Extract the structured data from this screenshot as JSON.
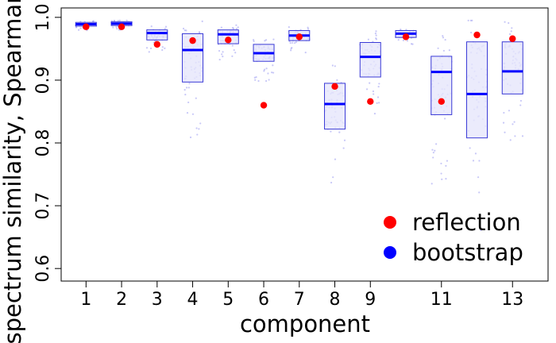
{
  "chart_data": {
    "type": "box",
    "xlabel": "component",
    "ylabel": "spectrum similarity, Spearman",
    "ylim": [
      0.58,
      1.015
    ],
    "xlim": [
      0.3,
      14.0
    ],
    "x_ticks": [
      {
        "pos": 1,
        "label": "1"
      },
      {
        "pos": 2,
        "label": "2"
      },
      {
        "pos": 3,
        "label": "3"
      },
      {
        "pos": 4,
        "label": "4"
      },
      {
        "pos": 5,
        "label": "5"
      },
      {
        "pos": 6,
        "label": "6"
      },
      {
        "pos": 7,
        "label": "7"
      },
      {
        "pos": 8,
        "label": "8"
      },
      {
        "pos": 9,
        "label": "9"
      },
      {
        "pos": 11,
        "label": "11"
      },
      {
        "pos": 13,
        "label": "13"
      }
    ],
    "y_ticks": [
      {
        "pos": 0.6,
        "label": "0.6"
      },
      {
        "pos": 0.7,
        "label": "0.7"
      },
      {
        "pos": 0.8,
        "label": "0.8"
      },
      {
        "pos": 0.9,
        "label": "0.9"
      },
      {
        "pos": 1.0,
        "label": "1.0"
      }
    ],
    "boxes": [
      {
        "component": 1,
        "q1": 0.986,
        "median": 0.989,
        "q3": 0.992,
        "reflection": 0.985
      },
      {
        "component": 2,
        "q1": 0.987,
        "median": 0.99,
        "q3": 0.993,
        "reflection": 0.985
      },
      {
        "component": 3,
        "q1": 0.964,
        "median": 0.975,
        "q3": 0.98,
        "reflection": 0.957
      },
      {
        "component": 4,
        "q1": 0.897,
        "median": 0.948,
        "q3": 0.974,
        "reflection": 0.963
      },
      {
        "component": 5,
        "q1": 0.958,
        "median": 0.973,
        "q3": 0.98,
        "reflection": 0.964
      },
      {
        "component": 6,
        "q1": 0.93,
        "median": 0.943,
        "q3": 0.957,
        "reflection": 0.86
      },
      {
        "component": 7,
        "q1": 0.963,
        "median": 0.971,
        "q3": 0.979,
        "reflection": 0.969
      },
      {
        "component": 8,
        "q1": 0.822,
        "median": 0.862,
        "q3": 0.895,
        "reflection": 0.89
      },
      {
        "component": 9,
        "q1": 0.905,
        "median": 0.937,
        "q3": 0.96,
        "reflection": 0.866
      },
      {
        "component": 10,
        "q1": 0.968,
        "median": 0.974,
        "q3": 0.979,
        "reflection": 0.969
      },
      {
        "component": 11,
        "q1": 0.845,
        "median": 0.913,
        "q3": 0.938,
        "reflection": 0.866
      },
      {
        "component": 12,
        "q1": 0.808,
        "median": 0.878,
        "q3": 0.961,
        "reflection": 0.972
      },
      {
        "component": 13,
        "q1": 0.878,
        "median": 0.914,
        "q3": 0.961,
        "reflection": 0.966
      }
    ],
    "legend": {
      "placement": "bottom-right",
      "items": [
        {
          "label": "reflection",
          "color": "#ff0000"
        },
        {
          "label": "bootstrap",
          "color": "#0000ff"
        }
      ]
    },
    "colors": {
      "reflection": "#ff0000",
      "bootstrap": "#0000ff",
      "box_fill": "#e6e6fb",
      "box_stroke": "#3a3ad6",
      "jitter": "#9a9af0"
    }
  }
}
